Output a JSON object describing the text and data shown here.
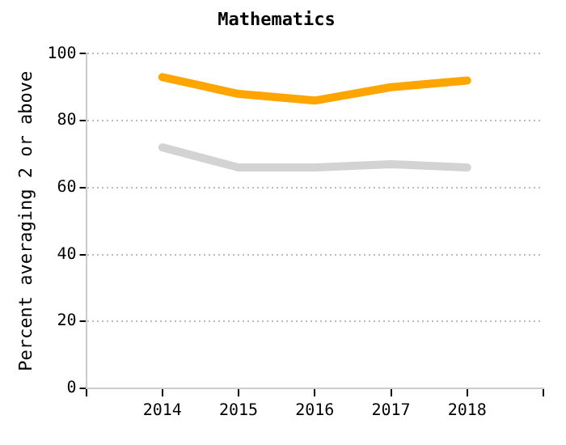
{
  "chart_data": {
    "type": "line",
    "title": "Mathematics",
    "ylabel": "Percent averaging 2 or above",
    "x": [
      2014,
      2015,
      2016,
      2017,
      2018
    ],
    "series": [
      {
        "color": "#ffa500",
        "values": [
          93,
          88,
          86,
          90,
          92
        ]
      },
      {
        "color": "#d3d3d3",
        "values": [
          72,
          66,
          66,
          67,
          66
        ]
      }
    ],
    "xlim": [
      2013,
      2019
    ],
    "xticks": [
      {
        "value": 2013,
        "label": null
      },
      2014,
      2015,
      2016,
      2017,
      2018,
      {
        "value": 2019,
        "label": null
      }
    ],
    "ylim": [
      0,
      100
    ],
    "yticks": [
      0,
      20,
      40,
      60,
      80,
      100
    ],
    "grid": "y",
    "legend": false,
    "marker": "none",
    "line_style": "solid"
  }
}
